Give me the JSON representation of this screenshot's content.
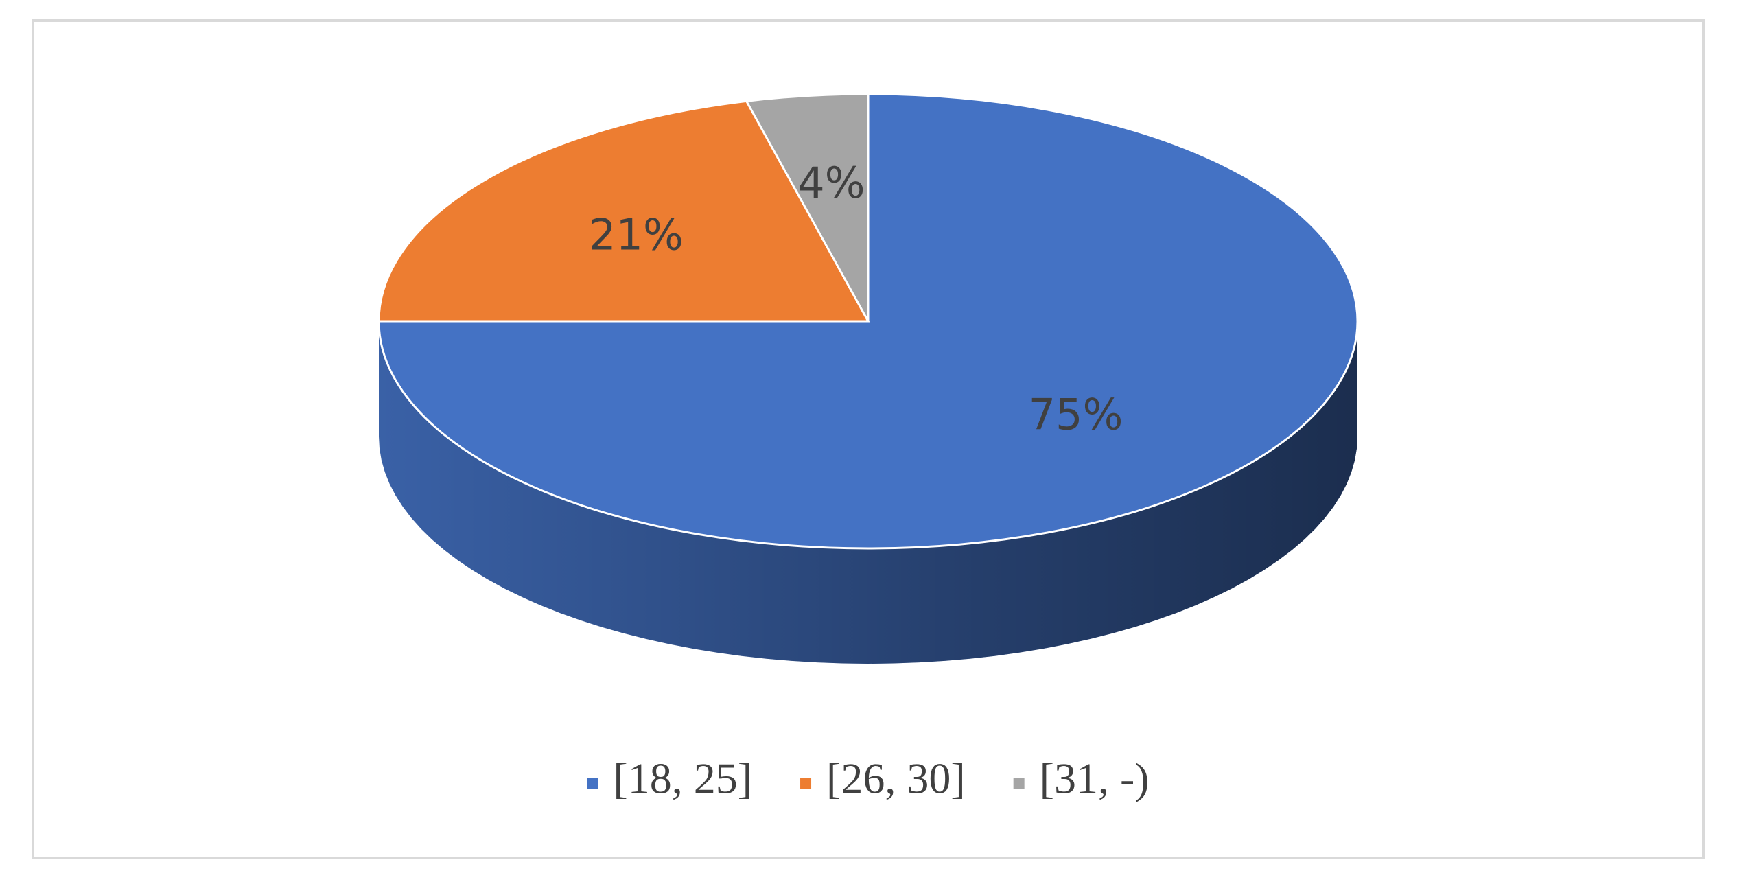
{
  "chart_data": {
    "type": "pie",
    "categories": [
      "[18, 25]",
      "[26, 30]",
      "[31, -)"
    ],
    "values": [
      75,
      21,
      4
    ],
    "value_labels": [
      "75%",
      "21%",
      "4%"
    ],
    "colors": [
      "#4472c4",
      "#ed7d31",
      "#a5a5a5"
    ]
  }
}
